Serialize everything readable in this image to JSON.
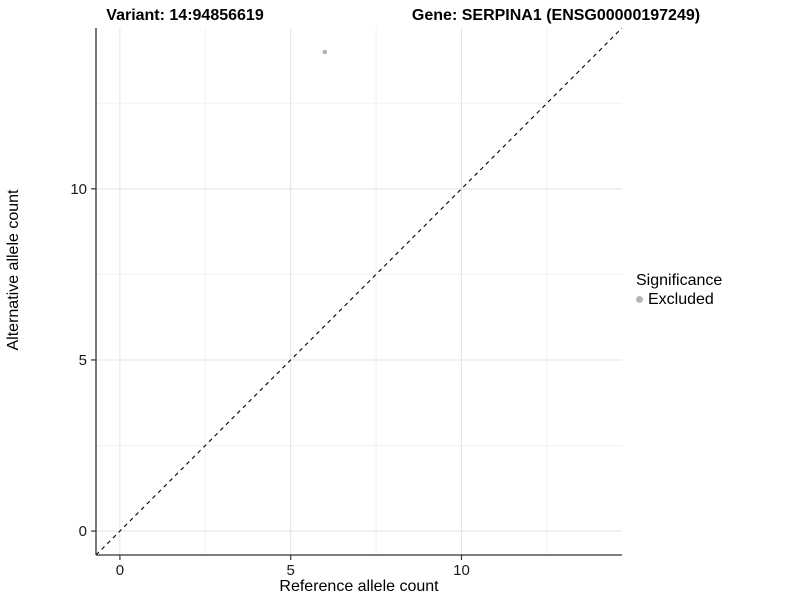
{
  "figure": {
    "title_left": "Variant: 14:94856619",
    "title_right": "Gene: SERPINA1 (ENSG00000197249)"
  },
  "chart_data": {
    "type": "scatter",
    "title_left": "Variant: 14:94856619",
    "title_right": "Gene: SERPINA1 (ENSG00000197249)",
    "xlabel": "Reference allele count",
    "ylabel": "Alternative allele count",
    "xlim": [
      -0.7,
      14.7
    ],
    "ylim": [
      -0.7,
      14.7
    ],
    "x_ticks": [
      0,
      5,
      10
    ],
    "y_ticks": [
      0,
      5,
      10
    ],
    "x_minor_ticks": [
      2.5,
      7.5,
      12.5
    ],
    "y_minor_ticks": [
      2.5,
      7.5,
      12.5
    ],
    "grid": true,
    "series": [
      {
        "name": "Excluded",
        "color": "#b5b5b5",
        "points": [
          {
            "x": 6,
            "y": 14
          }
        ]
      }
    ],
    "reference_line": {
      "type": "identity",
      "style": "dashed",
      "color": "#000000"
    },
    "legend": {
      "title": "Significance",
      "position": "right",
      "entries": [
        {
          "label": "Excluded",
          "color": "#b5b5b5"
        }
      ]
    }
  },
  "colors": {
    "background": "#ffffff",
    "grid_major": "#e3e3e3",
    "grid_minor": "#f1f1f1",
    "axis_line": "#333333",
    "tick_mark": "#333333",
    "tick_text": "#1a1a1a",
    "point": "#b5b5b5"
  }
}
